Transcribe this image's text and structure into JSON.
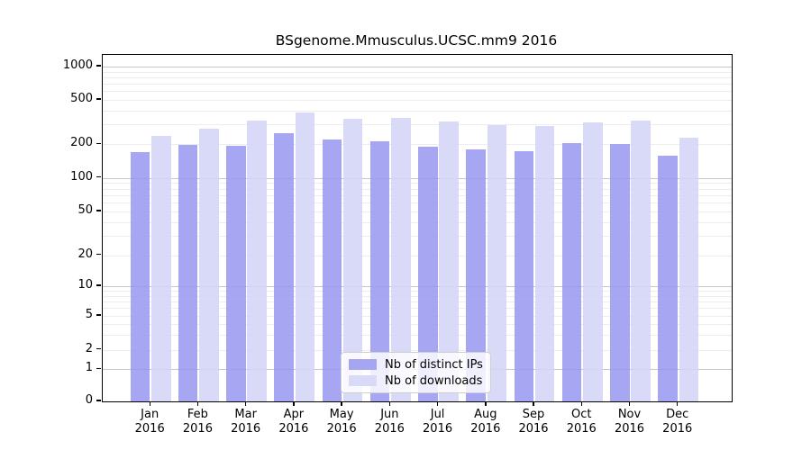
{
  "title": "BSgenome.Mmusculus.UCSC.mm9 2016",
  "legend": {
    "items": [
      {
        "label": "Nb of distinct IPs",
        "color": "#a5a5f2"
      },
      {
        "label": "Nb of downloads",
        "color": "#d9d9f8"
      }
    ]
  },
  "colors": {
    "ips_bar": "#a5a5f2",
    "downloads_bar": "#d9d9f8",
    "major_grid": "#c6c6c6",
    "minor_grid": "#ededed",
    "axis": "#000000"
  },
  "chart_data": {
    "type": "bar",
    "title": "BSgenome.Mmusculus.UCSC.mm9 2016",
    "categories": [
      "Jan",
      "Feb",
      "Mar",
      "Apr",
      "May",
      "Jun",
      "Jul",
      "Aug",
      "Sep",
      "Oct",
      "Nov",
      "Dec"
    ],
    "x_tick_second_line": "2016",
    "series": [
      {
        "name": "Nb of distinct IPs",
        "color": "#a5a5f2",
        "values": [
          170,
          198,
          194,
          252,
          219,
          213,
          190,
          181,
          173,
          205,
          201,
          158
        ]
      },
      {
        "name": "Nb of downloads",
        "color": "#d9d9f8",
        "values": [
          239,
          277,
          324,
          384,
          338,
          348,
          320,
          299,
          294,
          316,
          324,
          230
        ]
      }
    ],
    "xlabel": "",
    "ylabel": "",
    "yscale": "symlog",
    "y_ticks": [
      0,
      1,
      2,
      5,
      10,
      20,
      50,
      100,
      200,
      500,
      1000
    ],
    "ylim": [
      0,
      1200
    ],
    "grid": true,
    "legend_position": "lower-center-inside"
  }
}
